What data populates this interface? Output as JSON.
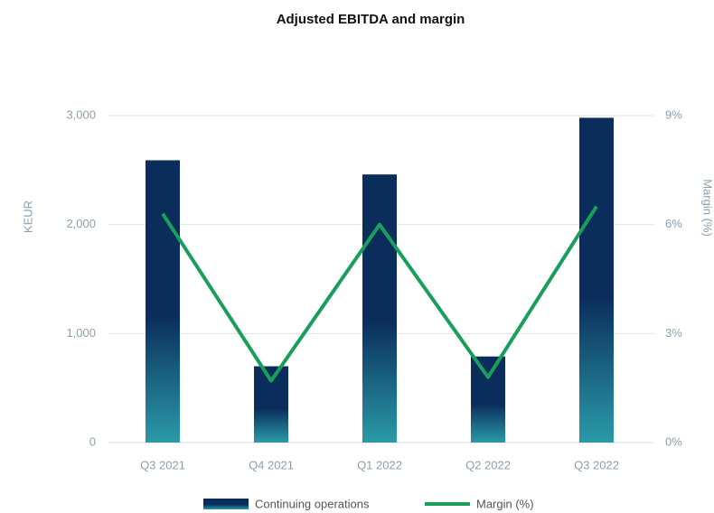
{
  "chart_data": {
    "type": "bar",
    "title": "Adjusted EBITDA and margin",
    "y_label": "KEUR",
    "y2_label": "Margin (%)",
    "categories": [
      "Q3 2021",
      "Q4 2021",
      "Q1 2022",
      "Q2 2022",
      "Q3 2022"
    ],
    "series": [
      {
        "name": "Continuing operations",
        "type": "bar",
        "color": "#0a2d5c",
        "values": [
          2590,
          700,
          2460,
          790,
          2980
        ]
      },
      {
        "name": "Margin (%)",
        "type": "line",
        "axis": "y2",
        "color": "#1a9e5c",
        "values": [
          6.3,
          1.7,
          6.0,
          1.8,
          6.5
        ]
      }
    ],
    "ylim": [
      0,
      3000
    ],
    "yticks": [
      0,
      {
        "value": 1000,
        "label": "1,000"
      },
      {
        "value": 2000,
        "label": "2,000"
      },
      {
        "value": 3000,
        "label": "3,000"
      }
    ],
    "y2lim": [
      0,
      9
    ],
    "y2ticks": [
      {
        "value": 0,
        "label": "0%"
      },
      {
        "value": 3,
        "label": "3%"
      },
      {
        "value": 6,
        "label": "6%"
      },
      {
        "value": 9,
        "label": "9%"
      }
    ],
    "grid": true
  }
}
